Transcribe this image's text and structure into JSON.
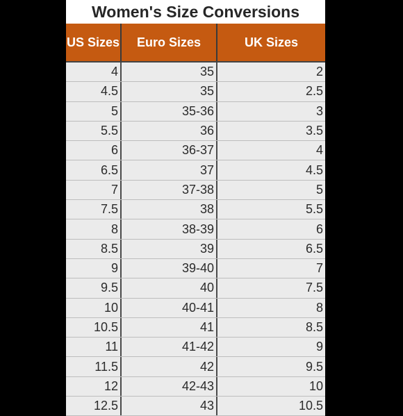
{
  "title": "Women's Size Conversions",
  "colors": {
    "header_bg": "#c55a11",
    "header_text": "#ffffff",
    "row_bg": "#ebebeb",
    "background": "#000000"
  },
  "table": {
    "headers": [
      "US Sizes",
      "Euro Sizes",
      "UK Sizes"
    ],
    "rows": [
      [
        "4",
        "35",
        "2"
      ],
      [
        "4.5",
        "35",
        "2.5"
      ],
      [
        "5",
        "35-36",
        "3"
      ],
      [
        "5.5",
        "36",
        "3.5"
      ],
      [
        "6",
        "36-37",
        "4"
      ],
      [
        "6.5",
        "37",
        "4.5"
      ],
      [
        "7",
        "37-38",
        "5"
      ],
      [
        "7.5",
        "38",
        "5.5"
      ],
      [
        "8",
        "38-39",
        "6"
      ],
      [
        "8.5",
        "39",
        "6.5"
      ],
      [
        "9",
        "39-40",
        "7"
      ],
      [
        "9.5",
        "40",
        "7.5"
      ],
      [
        "10",
        "40-41",
        "8"
      ],
      [
        "10.5",
        "41",
        "8.5"
      ],
      [
        "11",
        "41-42",
        "9"
      ],
      [
        "11.5",
        "42",
        "9.5"
      ],
      [
        "12",
        "42-43",
        "10"
      ],
      [
        "12.5",
        "43",
        "10.5"
      ]
    ]
  }
}
